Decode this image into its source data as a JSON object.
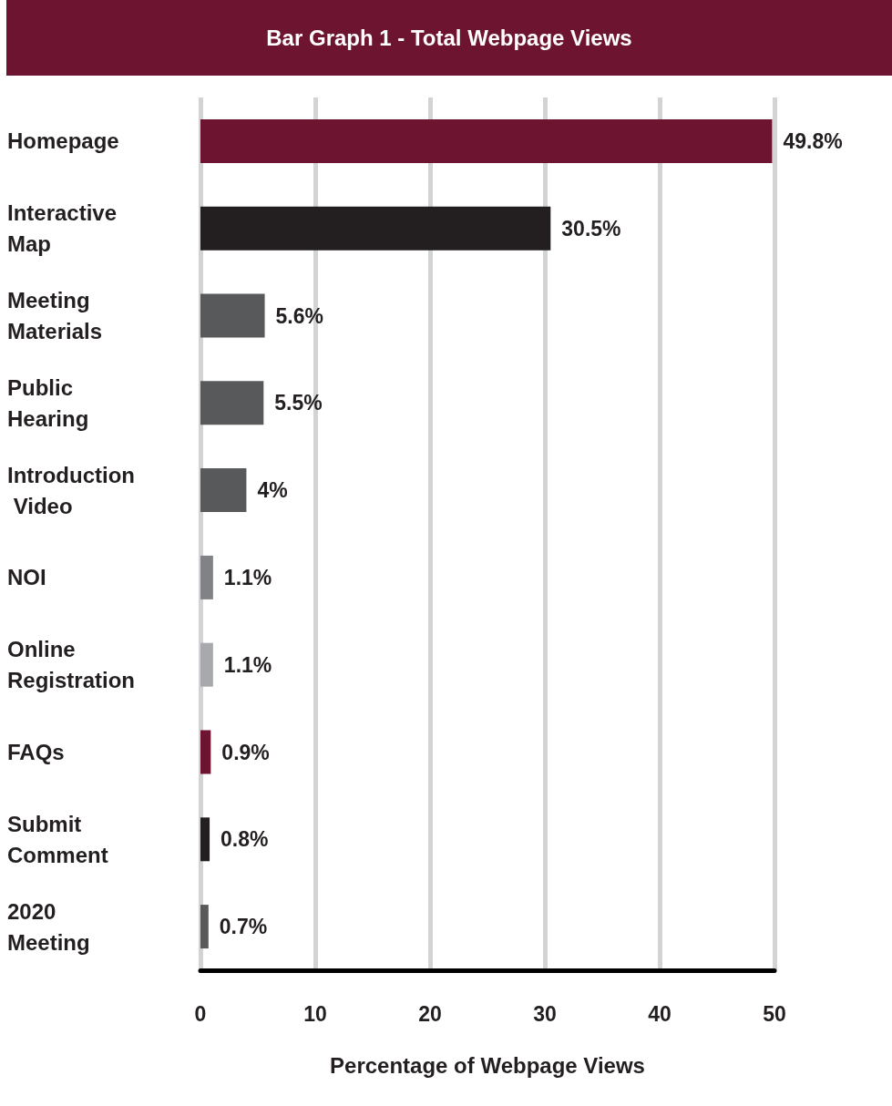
{
  "chart_data": {
    "type": "bar",
    "orientation": "horizontal",
    "title": "Bar Graph 1 - Total Webpage Views",
    "xlabel": "Percentage of Webpage Views",
    "categories": [
      "Homepage",
      "Interactive Map",
      "Meeting Materials",
      "Public Hearing",
      "Introduction Video",
      "NOI",
      "Online Registration",
      "FAQs",
      "Submit Comment",
      "2020 Meeting"
    ],
    "values": [
      49.8,
      30.5,
      5.6,
      5.5,
      4,
      1.1,
      1.1,
      0.9,
      0.8,
      0.7
    ],
    "colors": [
      "#6d1530",
      "#231f20",
      "#58595b",
      "#58595b",
      "#58595b",
      "#808285",
      "#a7a9ac",
      "#6d1530",
      "#231f20",
      "#58595b"
    ],
    "value_labels": [
      "49.8%",
      "30.5%",
      "5.6%",
      "5.5%",
      "4%",
      "1.1%",
      "1.1%",
      "0.9%",
      "0.8%",
      "0.7%"
    ],
    "xlim": [
      0,
      50
    ],
    "xticks": [
      0,
      10,
      20,
      30,
      40,
      50
    ],
    "grid": "x"
  }
}
